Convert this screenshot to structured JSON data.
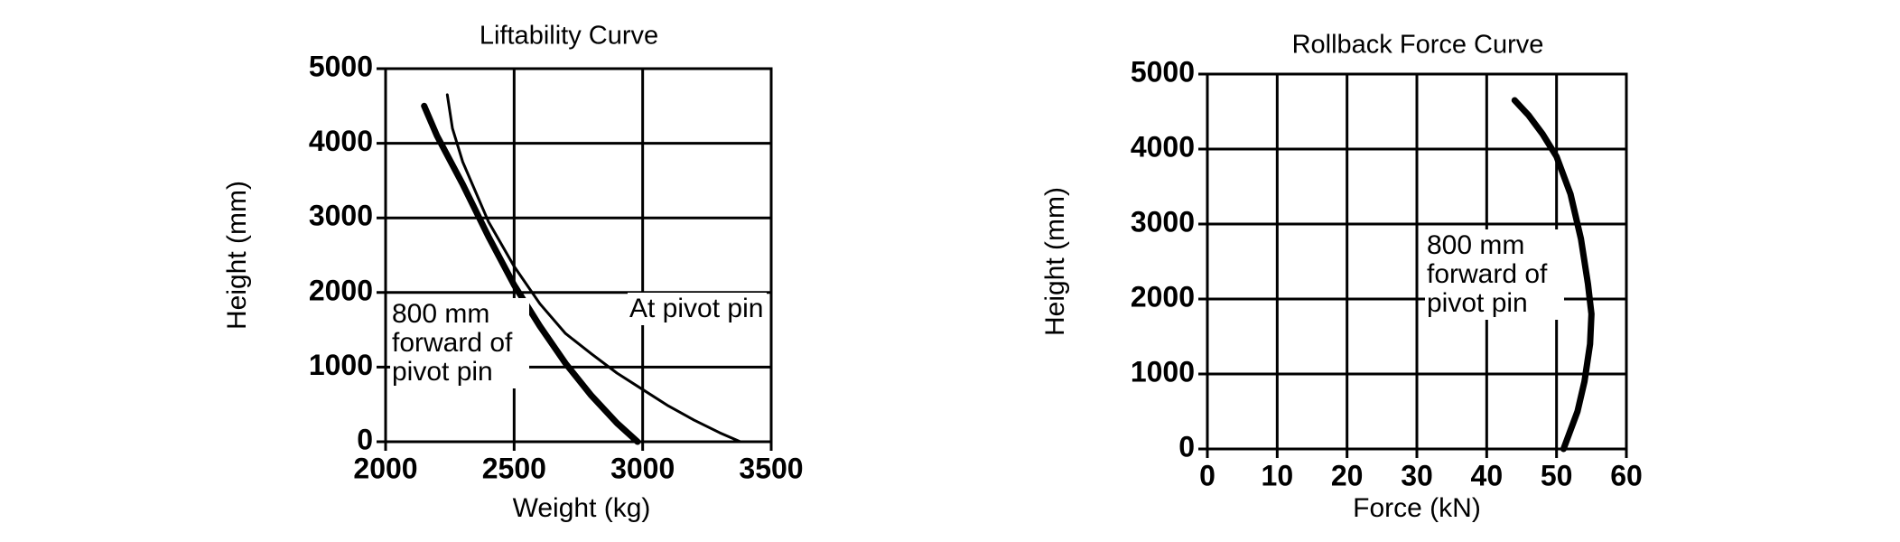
{
  "chart_data": [
    {
      "type": "line",
      "title": "Liftability Curve",
      "x_label": "Weight (kg)",
      "y_label": "Height (mm)",
      "xlim": [
        2000,
        3500
      ],
      "ylim": [
        0,
        5000
      ],
      "xticks": [
        2000,
        2500,
        3000,
        3500
      ],
      "yticks": [
        0,
        1000,
        2000,
        3000,
        4000,
        5000
      ],
      "grid": true,
      "series": [
        {
          "name": "800 mm forward of pivot pin",
          "color": "#000000",
          "x": [
            2150,
            2200,
            2300,
            2400,
            2500,
            2600,
            2700,
            2800,
            2900,
            2980
          ],
          "values": [
            4500,
            4100,
            3450,
            2750,
            2100,
            1550,
            1050,
            620,
            250,
            0
          ]
        },
        {
          "name": "At pivot pin",
          "color": "#000000",
          "x": [
            2240,
            2260,
            2300,
            2400,
            2500,
            2600,
            2700,
            2800,
            2900,
            3000,
            3100,
            3200,
            3300,
            3380
          ],
          "values": [
            4650,
            4200,
            3750,
            2950,
            2350,
            1850,
            1450,
            1180,
            920,
            700,
            480,
            290,
            120,
            0
          ]
        }
      ]
    },
    {
      "type": "line",
      "title": "Rollback Force Curve",
      "x_label": "Force (kN)",
      "y_label": "Height (mm)",
      "xlim": [
        0,
        60
      ],
      "ylim": [
        0,
        5000
      ],
      "xticks": [
        0,
        10,
        20,
        30,
        40,
        50,
        60
      ],
      "yticks": [
        0,
        1000,
        2000,
        3000,
        4000,
        5000
      ],
      "grid": true,
      "series": [
        {
          "name": "800 mm forward of pivot pin",
          "color": "#000000",
          "x": [
            44,
            46,
            48,
            50,
            52,
            53.5,
            54.5,
            55,
            54.8,
            54,
            53,
            52,
            51
          ],
          "values": [
            4650,
            4450,
            4200,
            3900,
            3400,
            2800,
            2200,
            1800,
            1400,
            900,
            500,
            250,
            0
          ]
        }
      ]
    }
  ]
}
